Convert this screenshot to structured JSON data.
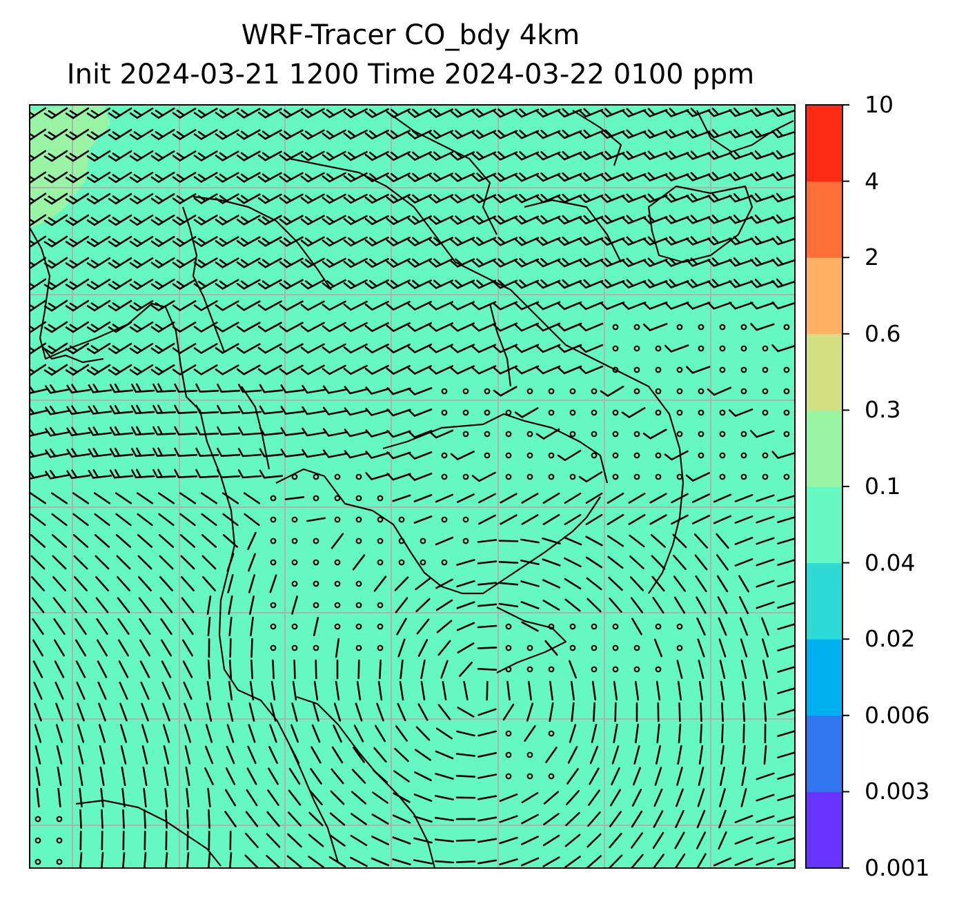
{
  "title": {
    "line1": "WRF-Tracer CO_bdy 4km",
    "line2": "Init 2024-03-21 1200 Time 2024-03-22 0100 ppm"
  },
  "map": {
    "variable": "CO_bdy",
    "units": "ppm",
    "background_fill": "#66f8c2",
    "higher_value_patch_fill": "#99f5a3",
    "coastline_color": "#000000",
    "gridline_color": "#b0b0b0",
    "wind_barb_color": "#000000",
    "calm_marker": "circle"
  },
  "colorbar": {
    "tick_labels": [
      "0.001",
      "0.003",
      "0.006",
      "0.02",
      "0.04",
      "0.1",
      "0.3",
      "0.6",
      "2",
      "4",
      "10"
    ],
    "bin_colors": [
      "#6633ff",
      "#3377f0",
      "#00b0ee",
      "#2edad6",
      "#66f8c2",
      "#99f5a3",
      "#d4df82",
      "#ffb264",
      "#ff7038",
      "#ff2a14"
    ]
  }
}
